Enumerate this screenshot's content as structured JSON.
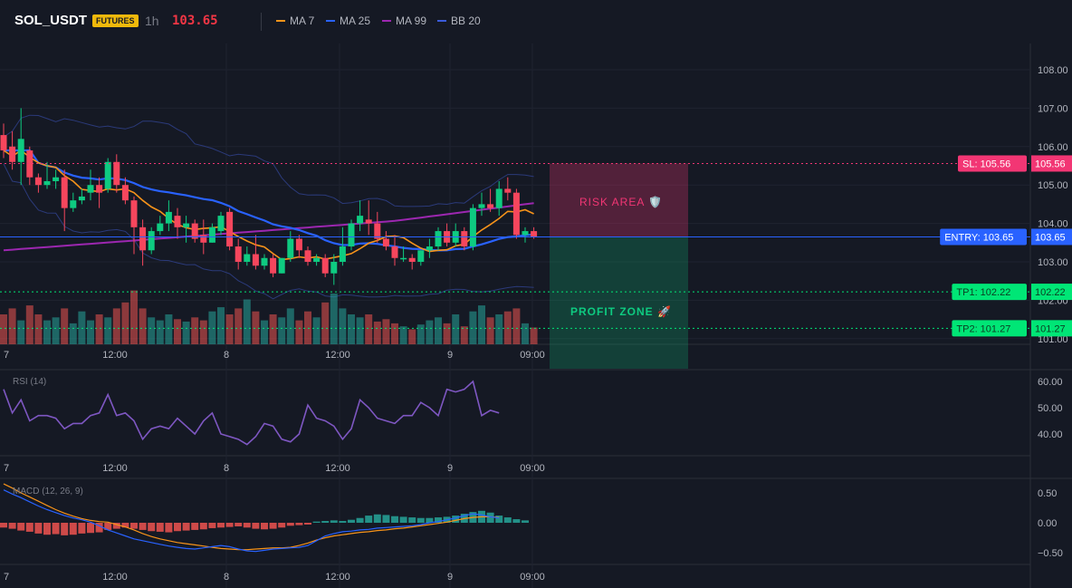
{
  "header": {
    "symbol": "SOL_USDT",
    "badge": "FUTURES",
    "interval": "1h",
    "last_price": "103.65",
    "legend": [
      {
        "label": "MA 7",
        "color": "#f7931a"
      },
      {
        "label": "MA 25",
        "color": "#2962ff"
      },
      {
        "label": "MA 99",
        "color": "#9c27b0"
      },
      {
        "label": "BB 20",
        "color": "#1e3a8a"
      }
    ]
  },
  "colors": {
    "up": "#26a69a",
    "down": "#ef5350",
    "bull_candle": "#0ecb81",
    "bear_candle": "#f6465d",
    "sl": "#f23674",
    "entry": "#2962ff",
    "tp": "#00e676"
  },
  "time_axis": [
    "7",
    "12:00",
    "8",
    "12:00",
    "9",
    "09:00"
  ],
  "price_axis": {
    "ticks": [
      "108.00",
      "107.00",
      "106.00",
      "105.00",
      "104.00",
      "103.00",
      "102.00",
      "101.00"
    ],
    "tags": [
      {
        "id": "sl",
        "label": "SL: 105.56",
        "value": "105.56",
        "price": 105.56
      },
      {
        "id": "entry",
        "label": "ENTRY: 103.65",
        "value": "103.65",
        "price": 103.65
      },
      {
        "id": "tp1",
        "label": "TP1: 102.22",
        "value": "102.22",
        "price": 102.22
      },
      {
        "id": "tp2",
        "label": "TP2: 101.27",
        "value": "101.27",
        "price": 101.27
      }
    ]
  },
  "zones": {
    "risk": "RISK AREA 🛡️",
    "profit": "PROFIT ZONE 🚀"
  },
  "rsi": {
    "label": "RSI (14)",
    "ticks": [
      "60.00",
      "50.00",
      "40.00"
    ],
    "values": [
      57,
      48,
      53,
      45,
      47,
      47,
      46,
      42,
      44,
      44,
      47,
      48,
      55,
      47,
      48,
      45,
      38,
      42,
      43,
      42,
      46,
      43,
      40,
      45,
      48,
      40,
      39,
      38,
      36,
      39,
      44,
      43,
      38,
      37,
      40,
      51,
      46,
      45,
      43,
      38,
      42,
      53,
      50,
      46,
      45,
      44,
      47,
      47,
      52,
      50,
      47,
      57,
      56,
      57,
      60,
      47,
      49,
      48
    ]
  },
  "macd": {
    "label": "MACD (12, 26, 9)",
    "ticks": [
      "0.50",
      "0.00",
      "−0.50"
    ],
    "hist": [
      -0.08,
      -0.1,
      -0.13,
      -0.15,
      -0.18,
      -0.2,
      -0.19,
      -0.21,
      -0.2,
      -0.18,
      -0.17,
      -0.16,
      -0.12,
      -0.1,
      -0.08,
      -0.1,
      -0.12,
      -0.14,
      -0.15,
      -0.16,
      -0.14,
      -0.13,
      -0.12,
      -0.11,
      -0.09,
      -0.08,
      -0.07,
      -0.06,
      -0.08,
      -0.1,
      -0.11,
      -0.1,
      -0.08,
      -0.05,
      -0.04,
      -0.03,
      0.02,
      0.03,
      0.04,
      0.03,
      0.05,
      0.08,
      0.12,
      0.14,
      0.13,
      0.11,
      0.1,
      0.09,
      0.08,
      0.08,
      0.09,
      0.1,
      0.12,
      0.15,
      0.18,
      0.2,
      0.17,
      0.12,
      0.09,
      0.06,
      0.04
    ],
    "macd_line": [
      0.55,
      0.48,
      0.42,
      0.35,
      0.28,
      0.22,
      0.17,
      0.12,
      0.08,
      0.05,
      0.01,
      -0.05,
      -0.12,
      -0.17,
      -0.22,
      -0.27,
      -0.3,
      -0.33,
      -0.36,
      -0.39,
      -0.41,
      -0.43,
      -0.44,
      -0.42,
      -0.4,
      -0.38,
      -0.4,
      -0.44,
      -0.47,
      -0.48,
      -0.46,
      -0.44,
      -0.43,
      -0.42,
      -0.41,
      -0.38,
      -0.3,
      -0.22,
      -0.18,
      -0.15,
      -0.14,
      -0.12,
      -0.11,
      -0.09,
      -0.08,
      -0.07,
      -0.06,
      -0.05,
      -0.03,
      0.0,
      0.02,
      0.05,
      0.08,
      0.12,
      0.15,
      0.13,
      0.1,
      0.08
    ],
    "signal_line": [
      0.65,
      0.58,
      0.5,
      0.43,
      0.36,
      0.29,
      0.22,
      0.16,
      0.11,
      0.07,
      0.04,
      0.02,
      0.01,
      -0.03,
      -0.07,
      -0.12,
      -0.18,
      -0.23,
      -0.27,
      -0.3,
      -0.33,
      -0.35,
      -0.37,
      -0.39,
      -0.41,
      -0.43,
      -0.44,
      -0.45,
      -0.45,
      -0.44,
      -0.43,
      -0.42,
      -0.42,
      -0.41,
      -0.38,
      -0.34,
      -0.29,
      -0.25,
      -0.22,
      -0.2,
      -0.18,
      -0.16,
      -0.15,
      -0.13,
      -0.12,
      -0.1,
      -0.09,
      -0.07,
      -0.05,
      -0.03,
      -0.01,
      0.01,
      0.04,
      0.07,
      0.09,
      0.1,
      0.1,
      0.09
    ]
  },
  "candles": [
    {
      "o": 106.3,
      "h": 106.6,
      "l": 105.7,
      "c": 105.9
    },
    {
      "o": 106.0,
      "h": 106.4,
      "l": 105.4,
      "c": 105.6
    },
    {
      "o": 105.6,
      "h": 107.0,
      "l": 105.0,
      "c": 106.2
    },
    {
      "o": 105.9,
      "h": 106.0,
      "l": 105.0,
      "c": 105.2
    },
    {
      "o": 105.2,
      "h": 105.3,
      "l": 104.8,
      "c": 105.0
    },
    {
      "o": 105.0,
      "h": 105.6,
      "l": 104.9,
      "c": 105.1
    },
    {
      "o": 105.1,
      "h": 105.4,
      "l": 104.9,
      "c": 105.2
    },
    {
      "o": 105.2,
      "h": 105.4,
      "l": 103.8,
      "c": 104.4
    },
    {
      "o": 104.4,
      "h": 104.8,
      "l": 104.3,
      "c": 104.6
    },
    {
      "o": 104.6,
      "h": 104.9,
      "l": 104.5,
      "c": 104.7
    },
    {
      "o": 104.8,
      "h": 105.4,
      "l": 104.6,
      "c": 105.0
    },
    {
      "o": 105.0,
      "h": 105.2,
      "l": 104.4,
      "c": 104.8
    },
    {
      "o": 104.9,
      "h": 105.7,
      "l": 104.8,
      "c": 105.6
    },
    {
      "o": 105.6,
      "h": 105.8,
      "l": 104.8,
      "c": 105.0
    },
    {
      "o": 105.0,
      "h": 105.2,
      "l": 104.5,
      "c": 104.6
    },
    {
      "o": 104.6,
      "h": 104.7,
      "l": 103.2,
      "c": 103.9
    },
    {
      "o": 103.9,
      "h": 104.1,
      "l": 102.9,
      "c": 103.3
    },
    {
      "o": 103.3,
      "h": 103.9,
      "l": 103.2,
      "c": 103.8
    },
    {
      "o": 103.8,
      "h": 104.2,
      "l": 103.7,
      "c": 104.0
    },
    {
      "o": 104.0,
      "h": 104.6,
      "l": 103.8,
      "c": 104.3
    },
    {
      "o": 104.2,
      "h": 104.4,
      "l": 103.6,
      "c": 103.9
    },
    {
      "o": 103.9,
      "h": 104.2,
      "l": 103.5,
      "c": 104.0
    },
    {
      "o": 104.0,
      "h": 104.1,
      "l": 103.5,
      "c": 103.6
    },
    {
      "o": 103.7,
      "h": 104.1,
      "l": 103.2,
      "c": 103.5
    },
    {
      "o": 103.5,
      "h": 104.0,
      "l": 103.5,
      "c": 103.9
    },
    {
      "o": 103.8,
      "h": 104.3,
      "l": 103.7,
      "c": 104.2
    },
    {
      "o": 104.3,
      "h": 104.4,
      "l": 103.3,
      "c": 103.4
    },
    {
      "o": 103.4,
      "h": 103.6,
      "l": 102.8,
      "c": 103.0
    },
    {
      "o": 103.0,
      "h": 103.4,
      "l": 102.9,
      "c": 103.2
    },
    {
      "o": 103.2,
      "h": 103.7,
      "l": 102.8,
      "c": 102.9
    },
    {
      "o": 102.9,
      "h": 103.2,
      "l": 102.8,
      "c": 103.1
    },
    {
      "o": 103.1,
      "h": 103.2,
      "l": 102.6,
      "c": 102.7
    },
    {
      "o": 102.7,
      "h": 103.1,
      "l": 102.7,
      "c": 103.1
    },
    {
      "o": 103.1,
      "h": 103.8,
      "l": 103.0,
      "c": 103.6
    },
    {
      "o": 103.6,
      "h": 103.7,
      "l": 103.1,
      "c": 103.3
    },
    {
      "o": 103.3,
      "h": 103.4,
      "l": 102.9,
      "c": 103.0
    },
    {
      "o": 103.0,
      "h": 103.2,
      "l": 102.9,
      "c": 103.1
    },
    {
      "o": 103.1,
      "h": 103.2,
      "l": 102.6,
      "c": 102.7
    },
    {
      "o": 102.7,
      "h": 103.2,
      "l": 102.4,
      "c": 103.0
    },
    {
      "o": 103.0,
      "h": 103.9,
      "l": 102.9,
      "c": 103.4
    },
    {
      "o": 103.4,
      "h": 104.1,
      "l": 103.3,
      "c": 104.0
    },
    {
      "o": 104.0,
      "h": 104.6,
      "l": 103.8,
      "c": 104.2
    },
    {
      "o": 104.1,
      "h": 104.6,
      "l": 103.7,
      "c": 104.0
    },
    {
      "o": 104.0,
      "h": 104.3,
      "l": 103.5,
      "c": 103.6
    },
    {
      "o": 103.6,
      "h": 103.8,
      "l": 103.3,
      "c": 103.4
    },
    {
      "o": 103.4,
      "h": 103.7,
      "l": 102.9,
      "c": 103.1
    },
    {
      "o": 103.1,
      "h": 103.4,
      "l": 103.0,
      "c": 103.1
    },
    {
      "o": 103.1,
      "h": 103.2,
      "l": 102.8,
      "c": 103.0
    },
    {
      "o": 103.0,
      "h": 103.3,
      "l": 102.9,
      "c": 103.3
    },
    {
      "o": 103.3,
      "h": 103.6,
      "l": 103.1,
      "c": 103.4
    },
    {
      "o": 103.4,
      "h": 103.9,
      "l": 103.3,
      "c": 103.8
    },
    {
      "o": 103.8,
      "h": 104.0,
      "l": 103.4,
      "c": 103.5
    },
    {
      "o": 103.5,
      "h": 104.0,
      "l": 103.4,
      "c": 103.8
    },
    {
      "o": 103.8,
      "h": 103.9,
      "l": 103.3,
      "c": 103.4
    },
    {
      "o": 103.4,
      "h": 104.5,
      "l": 103.3,
      "c": 104.4
    },
    {
      "o": 104.4,
      "h": 104.8,
      "l": 104.2,
      "c": 104.5
    },
    {
      "o": 104.5,
      "h": 104.9,
      "l": 104.3,
      "c": 104.4
    },
    {
      "o": 104.4,
      "h": 105.1,
      "l": 104.2,
      "c": 104.9
    },
    {
      "o": 104.9,
      "h": 105.2,
      "l": 104.6,
      "c": 104.8
    },
    {
      "o": 104.8,
      "h": 104.9,
      "l": 103.6,
      "c": 103.7
    },
    {
      "o": 103.7,
      "h": 103.9,
      "l": 103.5,
      "c": 103.8
    },
    {
      "o": 103.8,
      "h": 103.9,
      "l": 103.6,
      "c": 103.65
    }
  ],
  "volumes": [
    0.5,
    0.6,
    0.4,
    0.65,
    0.5,
    0.4,
    0.45,
    0.6,
    0.35,
    0.55,
    0.4,
    0.5,
    0.45,
    0.6,
    0.7,
    0.9,
    0.6,
    0.45,
    0.4,
    0.5,
    0.42,
    0.38,
    0.45,
    0.4,
    0.55,
    0.62,
    0.5,
    0.6,
    0.75,
    0.55,
    0.4,
    0.5,
    0.45,
    0.6,
    0.4,
    0.55,
    0.45,
    0.7,
    0.85,
    0.6,
    0.5,
    0.45,
    0.5,
    0.38,
    0.42,
    0.35,
    0.3,
    0.25,
    0.33,
    0.4,
    0.45,
    0.35,
    0.5,
    0.3,
    0.55,
    0.65,
    0.45,
    0.5,
    0.55,
    0.6,
    0.35,
    0.28
  ]
}
